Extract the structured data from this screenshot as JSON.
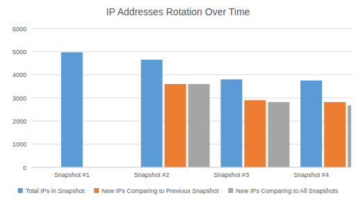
{
  "chart_data": {
    "type": "bar",
    "title": "IP Addresses Rotation Over Time",
    "categories": [
      "Snapshot #1",
      "Snapshot #2",
      "Snapshot #3",
      "Snapshot #4"
    ],
    "series": [
      {
        "name": "Total IPs in Snapshot",
        "color": "#5b9bd5",
        "values": [
          4970,
          4650,
          3800,
          3750
        ]
      },
      {
        "name": "New IPs Comparing to Previous Snapshot",
        "color": "#ed7d31",
        "values": [
          null,
          3600,
          2900,
          2820
        ]
      },
      {
        "name": "New IPs Comparing to All Snapshots",
        "color": "#a5a5a5",
        "values": [
          null,
          3600,
          2820,
          2680
        ]
      }
    ],
    "ylim": [
      0,
      6000
    ],
    "yticks": [
      0,
      1000,
      2000,
      3000,
      4000,
      5000,
      6000
    ],
    "grid": true,
    "legend": "bottom"
  }
}
